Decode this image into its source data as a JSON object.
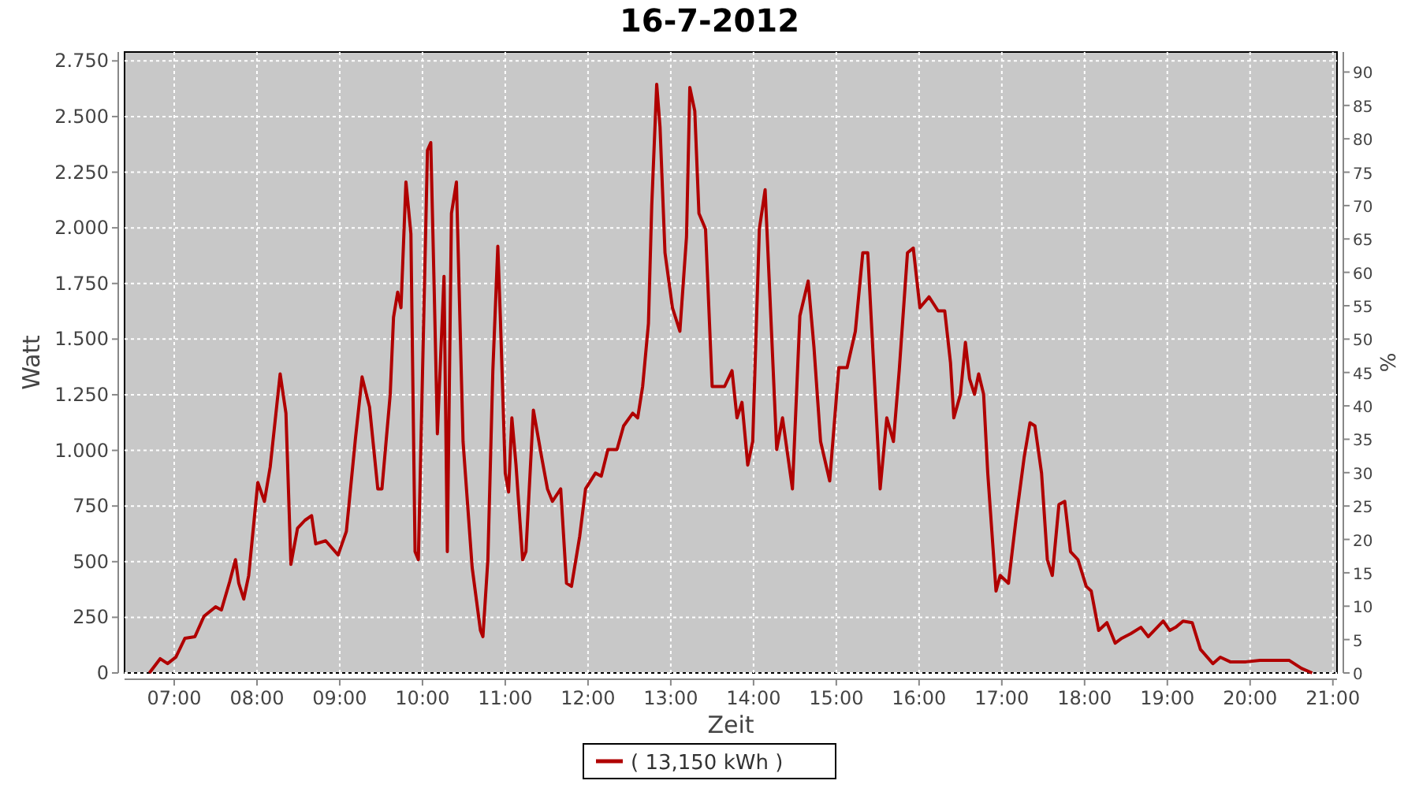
{
  "chart_data": {
    "type": "line",
    "title": "16-7-2012",
    "xlabel": "Zeit",
    "ylabel": "Watt",
    "y2label": "%",
    "x": [
      6.7,
      6.83,
      6.92,
      7.02,
      7.13,
      7.25,
      7.36,
      7.5,
      7.57,
      7.67,
      7.74,
      7.78,
      7.84,
      7.9,
      8.01,
      8.09,
      8.16,
      8.28,
      8.35,
      8.41,
      8.49,
      8.58,
      8.66,
      8.71,
      8.83,
      8.98,
      9.08,
      9.19,
      9.27,
      9.36,
      9.46,
      9.51,
      9.61,
      9.65,
      9.7,
      9.74,
      9.8,
      9.86,
      9.91,
      9.95,
      10.02,
      10.06,
      10.1,
      10.14,
      10.18,
      10.26,
      10.3,
      10.35,
      10.41,
      10.49,
      10.6,
      10.7,
      10.73,
      10.79,
      10.85,
      10.91,
      10.94,
      11.0,
      11.04,
      11.08,
      11.13,
      11.21,
      11.25,
      11.34,
      11.44,
      11.51,
      11.57,
      11.67,
      11.74,
      11.8,
      11.9,
      11.97,
      12.09,
      12.16,
      12.24,
      12.35,
      12.43,
      12.54,
      12.6,
      12.66,
      12.73,
      12.77,
      12.83,
      12.87,
      12.93,
      13.02,
      13.11,
      13.19,
      13.23,
      13.29,
      13.34,
      13.42,
      13.5,
      13.57,
      13.65,
      13.74,
      13.8,
      13.86,
      13.93,
      13.99,
      14.07,
      14.14,
      14.2,
      14.28,
      14.35,
      14.47,
      14.56,
      14.66,
      14.73,
      14.81,
      14.92,
      15.03,
      15.13,
      15.23,
      15.32,
      15.38,
      15.46,
      15.53,
      15.61,
      15.69,
      15.76,
      15.86,
      15.93,
      16.01,
      16.12,
      16.23,
      16.31,
      16.38,
      16.42,
      16.5,
      16.56,
      16.61,
      16.67,
      16.72,
      16.78,
      16.83,
      16.89,
      16.93,
      16.98,
      17.08,
      17.17,
      17.27,
      17.34,
      17.4,
      17.48,
      17.55,
      17.61,
      17.69,
      17.76,
      17.83,
      17.92,
      18.02,
      18.08,
      18.17,
      18.27,
      18.37,
      18.45,
      18.56,
      18.68,
      18.77,
      18.95,
      19.03,
      19.1,
      19.19,
      19.3,
      19.4,
      19.55,
      19.64,
      19.76,
      19.95,
      20.12,
      20.47,
      20.62,
      20.75
    ],
    "series": [
      {
        "name": "( 13,150 kWh )",
        "color": "#b00000",
        "values": [
          0,
          64,
          42,
          71,
          156,
          163,
          255,
          297,
          283,
          410,
          509,
          403,
          332,
          438,
          856,
          771,
          926,
          1344,
          1167,
          488,
          650,
          686,
          707,
          580,
          594,
          530,
          636,
          1054,
          1330,
          1195,
          827,
          827,
          1252,
          1598,
          1711,
          1641,
          2206,
          1973,
          545,
          509,
          1676,
          2348,
          2383,
          1747,
          1075,
          1782,
          545,
          2065,
          2206,
          1040,
          474,
          191,
          163,
          509,
          1358,
          1917,
          1605,
          898,
          813,
          1146,
          934,
          509,
          545,
          1181,
          969,
          827,
          771,
          827,
          403,
          389,
          615,
          827,
          898,
          884,
          1004,
          1004,
          1110,
          1167,
          1146,
          1287,
          1570,
          2100,
          2645,
          2454,
          1888,
          1641,
          1535,
          1959,
          2631,
          2525,
          2065,
          1994,
          1287,
          1287,
          1287,
          1358,
          1146,
          1216,
          934,
          1040,
          1994,
          2171,
          1676,
          1004,
          1146,
          827,
          1605,
          1761,
          1464,
          1040,
          863,
          1372,
          1372,
          1535,
          1888,
          1888,
          1322,
          827,
          1146,
          1040,
          1358,
          1888,
          1909,
          1641,
          1690,
          1627,
          1627,
          1393,
          1146,
          1252,
          1485,
          1322,
          1252,
          1344,
          1252,
          898,
          580,
          368,
          438,
          403,
          686,
          969,
          1124,
          1110,
          898,
          509,
          438,
          757,
          771,
          545,
          509,
          389,
          368,
          191,
          226,
          134,
          156,
          177,
          205,
          163,
          233,
          191,
          205,
          233,
          226,
          106,
          42,
          71,
          50,
          50,
          57,
          57,
          21,
          0
        ]
      }
    ],
    "xlim": [
      6.4,
      21.05
    ],
    "xticks": [
      {
        "value": 7,
        "label": "07:00"
      },
      {
        "value": 8,
        "label": "08:00"
      },
      {
        "value": 9,
        "label": "09:00"
      },
      {
        "value": 10,
        "label": "10:00"
      },
      {
        "value": 11,
        "label": "11:00"
      },
      {
        "value": 12,
        "label": "12:00"
      },
      {
        "value": 13,
        "label": "13:00"
      },
      {
        "value": 14,
        "label": "14:00"
      },
      {
        "value": 15,
        "label": "15:00"
      },
      {
        "value": 16,
        "label": "16:00"
      },
      {
        "value": 17,
        "label": "17:00"
      },
      {
        "value": 18,
        "label": "18:00"
      },
      {
        "value": 19,
        "label": "19:00"
      },
      {
        "value": 20,
        "label": "20:00"
      },
      {
        "value": 21,
        "label": "21:00"
      }
    ],
    "ylim": [
      0,
      2790
    ],
    "yticks": [
      0,
      250,
      500,
      750,
      {
        "value": 1000,
        "label": "1.000"
      },
      {
        "value": 1250,
        "label": "1.250"
      },
      {
        "value": 1500,
        "label": "1.500"
      },
      {
        "value": 1750,
        "label": "1.750"
      },
      {
        "value": 2000,
        "label": "2.000"
      },
      {
        "value": 2250,
        "label": "2.250"
      },
      {
        "value": 2500,
        "label": "2.500"
      },
      {
        "value": 2750,
        "label": "2.750"
      }
    ],
    "y2lim": [
      0,
      93
    ],
    "y2ticks": [
      0,
      5,
      10,
      15,
      20,
      25,
      30,
      35,
      40,
      45,
      50,
      55,
      60,
      65,
      70,
      75,
      80,
      85,
      90
    ],
    "grid": true,
    "legend": "bottom",
    "marker": "none",
    "line_style": "solid"
  }
}
